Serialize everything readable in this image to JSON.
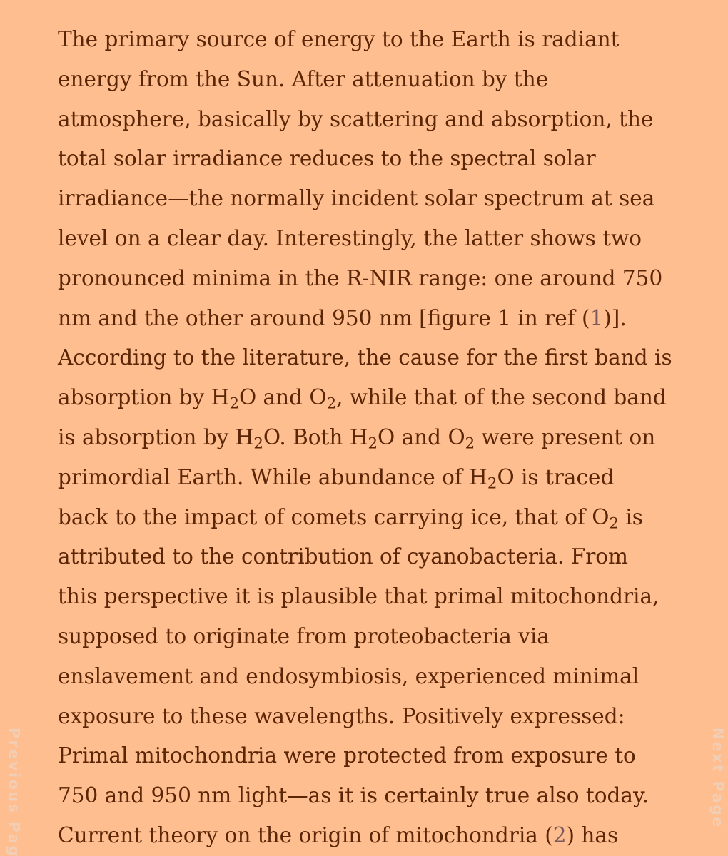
{
  "article": {
    "lines": [
      {
        "t": "The primary source of energy to the Earth is radiant"
      },
      {
        "t": "energy from the Sun. After attenuation by the"
      },
      {
        "t": "atmosphere, basically by scattering and absorption, the"
      },
      {
        "t": "total solar irradiance reduces to the spectral solar"
      },
      {
        "t": "irradiance—the normally incident solar spectrum at sea"
      },
      {
        "t": "level on a clear day. Interestingly, the latter shows two"
      },
      {
        "t": "pronounced minima in the R-NIR range: one around 750"
      },
      {
        "a": "nm and the other around 950 nm [figure 1 in ref (",
        "ref": "1",
        "b": ")]."
      },
      {
        "t": "According to the literature, the cause for the first band is"
      },
      {
        "a": "absorption by H",
        "s1": "2",
        "b": "O and O",
        "s2": "2",
        "c": ", while that of the second band"
      },
      {
        "a": "is absorption by H",
        "s1": "2",
        "b": "O. Both H",
        "s2": "2",
        "c": "O and O",
        "s3": "2",
        "d": " were present on"
      },
      {
        "a": "primordial Earth. While abundance of H",
        "s1": "2",
        "b": "O is traced"
      },
      {
        "a": "back to the impact of comets carrying ice, that of O",
        "s1": "2",
        "b": " is"
      },
      {
        "t": "attributed to the contribution of cyanobacteria. From"
      },
      {
        "t": "this perspective it is plausible that primal mitochondria,"
      },
      {
        "t": "supposed to originate from proteobacteria via"
      },
      {
        "t": "enslavement and endosymbiosis, experienced minimal"
      },
      {
        "t": "exposure to these wavelengths. Positively expressed:"
      },
      {
        "t": "Primal mitochondria were protected from exposure to"
      },
      {
        "t": "750 and 950 nm light—as it is certainly true also today."
      },
      {
        "a": "Current theory on the origin of mitochondria (",
        "ref": "2",
        "b": ") has"
      }
    ]
  },
  "nav": {
    "previous_label": "Previous Page",
    "next_label": "Next Page"
  },
  "colors": {
    "background": "#FFBE8F",
    "text": "#5B2606",
    "reference_link": "#7A5A5E",
    "nav_text": "#F0CFB6"
  }
}
